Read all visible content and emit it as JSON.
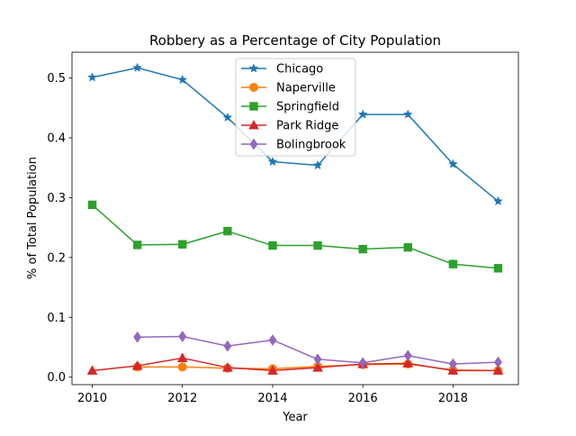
{
  "chart_data": {
    "type": "line",
    "title": "Robbery as a Percentage of City Population",
    "xlabel": "Year",
    "ylabel": "% of Total Population",
    "xlim": [
      2009.55,
      2019.45
    ],
    "ylim": [
      -0.0125,
      0.543
    ],
    "xticks": [
      2010,
      2012,
      2014,
      2016,
      2018
    ],
    "yticks": [
      0.0,
      0.1,
      0.2,
      0.3,
      0.4,
      0.5
    ],
    "ytick_labels": [
      "0.0",
      "0.1",
      "0.2",
      "0.3",
      "0.4",
      "0.5"
    ],
    "grid": false,
    "legend_position": "upper center",
    "series": [
      {
        "name": "Chicago",
        "color": "#1f77b4",
        "marker": "star",
        "x": [
          2010,
          2011,
          2012,
          2013,
          2014,
          2015,
          2016,
          2017,
          2018,
          2019
        ],
        "values": [
          0.501,
          0.517,
          0.497,
          0.434,
          0.36,
          0.354,
          0.439,
          0.439,
          0.356,
          0.294
        ]
      },
      {
        "name": "Naperville",
        "color": "#ff7f0e",
        "marker": "circle",
        "x": [
          2011,
          2012,
          2013,
          2014,
          2015,
          2016,
          2017,
          2018,
          2019
        ],
        "values": [
          0.017,
          0.017,
          0.015,
          0.014,
          0.018,
          0.021,
          0.022,
          0.012,
          0.011
        ]
      },
      {
        "name": "Springfield",
        "color": "#2ca02c",
        "marker": "square",
        "x": [
          2010,
          2011,
          2012,
          2013,
          2014,
          2015,
          2016,
          2017,
          2018,
          2019
        ],
        "values": [
          0.288,
          0.221,
          0.222,
          0.244,
          0.22,
          0.22,
          0.214,
          0.217,
          0.189,
          0.182
        ]
      },
      {
        "name": "Park Ridge",
        "color": "#d62728",
        "marker": "triangle",
        "x": [
          2010,
          2011,
          2012,
          2013,
          2014,
          2015,
          2016,
          2017,
          2018,
          2019
        ],
        "values": [
          0.011,
          0.019,
          0.032,
          0.016,
          0.011,
          0.016,
          0.022,
          0.023,
          0.011,
          0.011
        ]
      },
      {
        "name": "Bolingbrook",
        "color": "#9467bd",
        "marker": "diamond",
        "x": [
          2011,
          2012,
          2013,
          2014,
          2015,
          2016,
          2017,
          2018,
          2019
        ],
        "values": [
          0.067,
          0.068,
          0.052,
          0.062,
          0.03,
          0.024,
          0.036,
          0.022,
          0.025
        ]
      }
    ]
  }
}
